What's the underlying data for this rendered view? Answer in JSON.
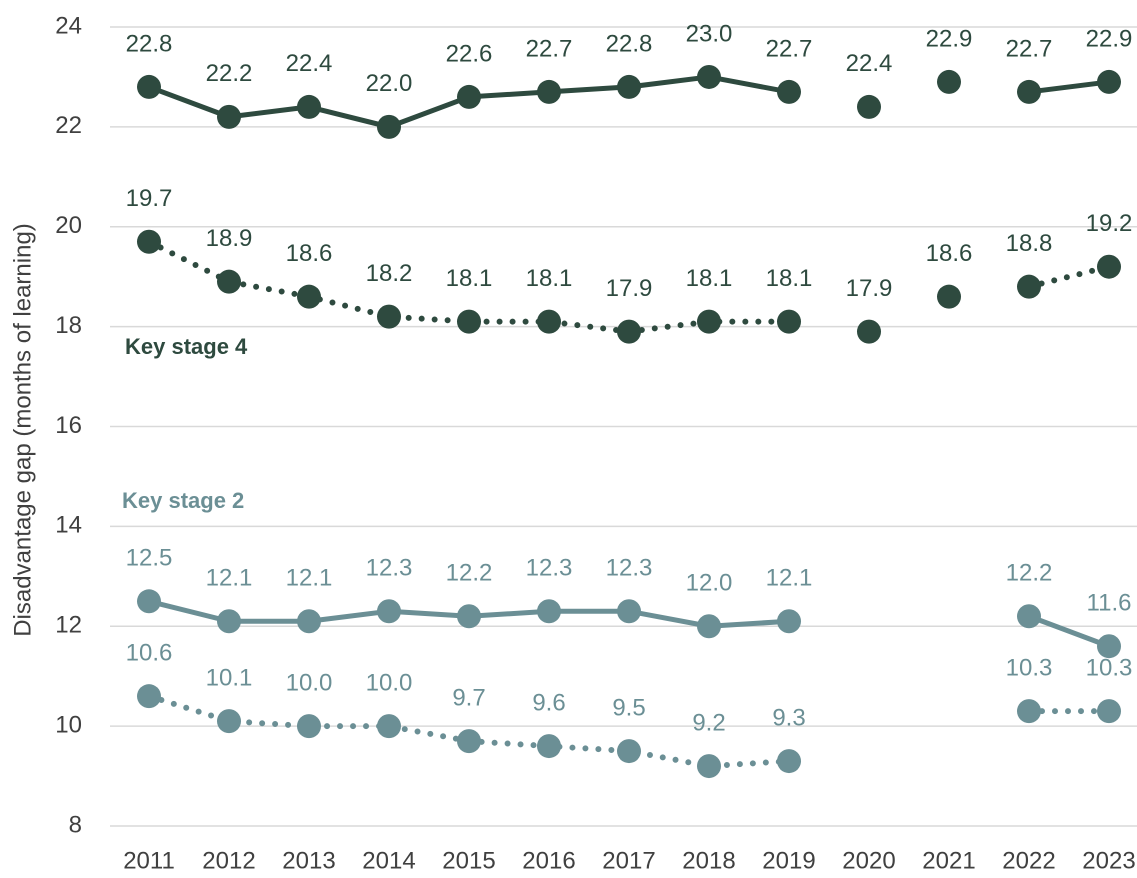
{
  "chart_data": {
    "type": "line",
    "y_label": "Disadvantage gap (months of learning)",
    "categories": [
      "2011",
      "2012",
      "2013",
      "2014",
      "2015",
      "2016",
      "2017",
      "2018",
      "2019",
      "2020",
      "2021",
      "2022",
      "2023"
    ],
    "ylim": [
      8,
      24
    ],
    "yticks": [
      8,
      10,
      12,
      14,
      16,
      18,
      20,
      22,
      24
    ],
    "grid": true,
    "series": [
      {
        "color": "#2e4a3f",
        "line_style": "solid",
        "values": [
          22.8,
          22.2,
          22.4,
          22.0,
          22.6,
          22.7,
          22.8,
          23.0,
          22.7,
          null,
          null,
          22.7,
          22.9
        ],
        "value_labels": [
          "22.8",
          "22.2",
          "22.4",
          "22.0",
          "22.6",
          "22.7",
          "22.8",
          "23.0",
          "22.7",
          null,
          null,
          "22.7",
          "22.9"
        ]
      },
      {
        "color": "#2e4a3f",
        "line_style": "none",
        "values": [
          null,
          null,
          null,
          null,
          null,
          null,
          null,
          null,
          null,
          22.4,
          22.9,
          null,
          null
        ],
        "value_labels": [
          null,
          null,
          null,
          null,
          null,
          null,
          null,
          null,
          null,
          "22.4",
          "22.9",
          null,
          null
        ]
      },
      {
        "color": "#2e4a3f",
        "line_style": "dotted",
        "values": [
          19.7,
          18.9,
          18.6,
          18.2,
          18.1,
          18.1,
          17.9,
          18.1,
          18.1,
          null,
          null,
          18.8,
          19.2
        ],
        "value_labels": [
          "19.7",
          "18.9",
          "18.6",
          "18.2",
          "18.1",
          "18.1",
          "17.9",
          "18.1",
          "18.1",
          null,
          null,
          "18.8",
          "19.2"
        ]
      },
      {
        "color": "#2e4a3f",
        "line_style": "none",
        "values": [
          null,
          null,
          null,
          null,
          null,
          null,
          null,
          null,
          null,
          17.9,
          18.6,
          null,
          null
        ],
        "value_labels": [
          null,
          null,
          null,
          null,
          null,
          null,
          null,
          null,
          null,
          "17.9",
          "18.6",
          null,
          null
        ]
      },
      {
        "color": "#6b8f95",
        "line_style": "solid",
        "values": [
          12.5,
          12.1,
          12.1,
          12.3,
          12.2,
          12.3,
          12.3,
          12.0,
          12.1,
          null,
          null,
          12.2,
          11.6
        ],
        "value_labels": [
          "12.5",
          "12.1",
          "12.1",
          "12.3",
          "12.2",
          "12.3",
          "12.3",
          "12.0",
          "12.1",
          null,
          null,
          "12.2",
          "11.6"
        ]
      },
      {
        "color": "#6b8f95",
        "line_style": "dotted",
        "values": [
          10.6,
          10.1,
          10.0,
          10.0,
          9.7,
          9.6,
          9.5,
          9.2,
          9.3,
          null,
          null,
          10.3,
          10.3
        ],
        "value_labels": [
          "10.6",
          "10.1",
          "10.0",
          "10.0",
          "9.7",
          "9.6",
          "9.5",
          "9.2",
          "9.3",
          null,
          null,
          "10.3",
          "10.3"
        ]
      }
    ],
    "annotations": [
      {
        "text": "Key stage 4",
        "color": "#2e4a3f"
      },
      {
        "text": "Key stage 2",
        "color": "#6b8f95"
      }
    ]
  }
}
